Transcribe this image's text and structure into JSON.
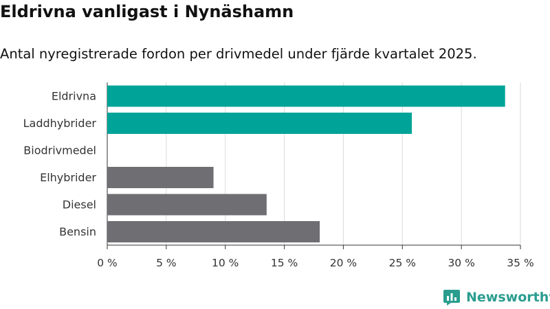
{
  "header": {
    "title": "Eldrivna vanligast i Nynäshamn",
    "subtitle": "Antal nyregistrerade fordon per drivmedel under fjärde kvartalet 2025."
  },
  "brand": {
    "name": "Newsworthy"
  },
  "colors": {
    "highlight": "#00a398",
    "default": "#6e6e73",
    "grid": "#d9d9d9",
    "brand": "#2a9d8f"
  },
  "chart_data": {
    "type": "bar",
    "orientation": "horizontal",
    "categories": [
      "Eldrivna",
      "Laddhybrider",
      "Biodrivmedel",
      "Elhybrider",
      "Diesel",
      "Bensin"
    ],
    "values": [
      33.7,
      25.8,
      0,
      9.0,
      13.5,
      18.0
    ],
    "highlighted": [
      true,
      true,
      false,
      false,
      false,
      false
    ],
    "xlim": [
      0,
      35
    ],
    "xticks": [
      0,
      5,
      10,
      15,
      20,
      25,
      30,
      35
    ],
    "xtick_labels": [
      "0 %",
      "5 %",
      "10 %",
      "15 %",
      "20 %",
      "25 %",
      "30 %",
      "35 %"
    ],
    "grid": true
  }
}
